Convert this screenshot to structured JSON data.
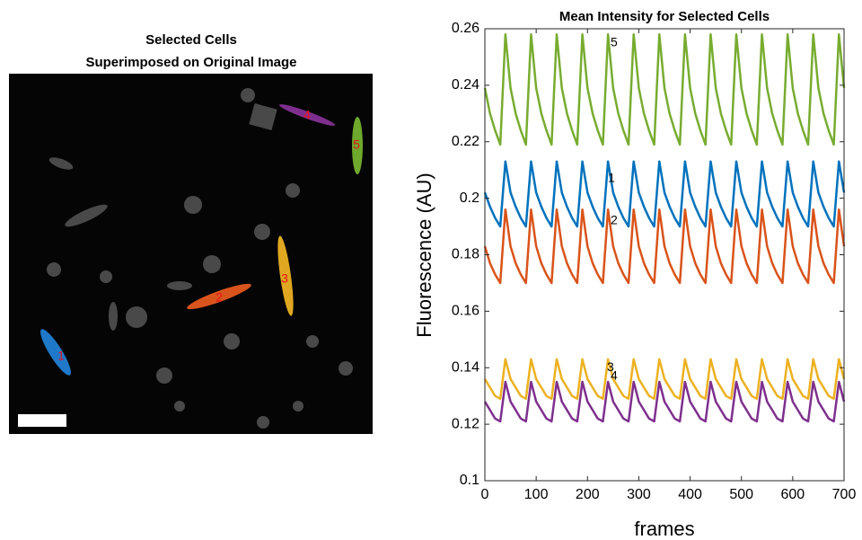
{
  "image_panel": {
    "title": [
      "Selected Cells",
      "Superimposed on Original Image"
    ],
    "cell_labels": [
      "1",
      "2",
      "3",
      "4",
      "5"
    ]
  },
  "chart_data": {
    "type": "line",
    "title": "Mean Intensity for Selected Cells",
    "x_label": "frames",
    "y_label": "Fluorescence (AU)",
    "xlim": [
      0,
      700
    ],
    "xticks": [
      0,
      100,
      200,
      300,
      400,
      500,
      600,
      700
    ],
    "ylim": [
      0.1,
      0.26
    ],
    "yticks": [
      0.1,
      0.12,
      0.14,
      0.16,
      0.18,
      0.2,
      0.22,
      0.24,
      0.26
    ],
    "x": [
      0,
      10,
      20,
      30,
      40,
      50,
      60,
      70,
      80,
      90,
      100,
      110,
      120,
      130,
      140,
      150,
      160,
      170,
      180,
      190,
      200,
      210,
      220,
      230,
      240,
      250,
      260,
      270,
      280,
      290,
      300,
      310,
      320,
      330,
      340,
      350,
      360,
      370,
      380,
      390,
      400,
      410,
      420,
      430,
      440,
      450,
      460,
      470,
      480,
      490,
      500,
      510,
      520,
      530,
      540,
      550,
      560,
      570,
      580,
      590,
      600,
      610,
      620,
      630,
      640,
      650,
      660,
      670,
      680,
      690,
      700
    ],
    "series": [
      {
        "name": "1",
        "color": "#0072bd",
        "values": [
          0.202,
          0.197,
          0.193,
          0.19,
          0.213,
          0.202,
          0.197,
          0.193,
          0.19,
          0.213,
          0.202,
          0.197,
          0.193,
          0.19,
          0.213,
          0.202,
          0.197,
          0.193,
          0.19,
          0.213,
          0.202,
          0.197,
          0.193,
          0.19,
          0.213,
          0.202,
          0.197,
          0.193,
          0.19,
          0.213,
          0.202,
          0.197,
          0.193,
          0.19,
          0.213,
          0.202,
          0.197,
          0.193,
          0.19,
          0.213,
          0.202,
          0.197,
          0.193,
          0.19,
          0.213,
          0.202,
          0.197,
          0.193,
          0.19,
          0.213,
          0.202,
          0.197,
          0.193,
          0.19,
          0.213,
          0.202,
          0.197,
          0.193,
          0.19,
          0.213,
          0.202,
          0.197,
          0.193,
          0.19,
          0.213,
          0.202,
          0.197,
          0.193,
          0.19,
          0.213,
          0.202
        ]
      },
      {
        "name": "2",
        "color": "#d95319",
        "values": [
          0.183,
          0.177,
          0.173,
          0.17,
          0.196,
          0.183,
          0.177,
          0.173,
          0.17,
          0.196,
          0.183,
          0.177,
          0.173,
          0.17,
          0.196,
          0.183,
          0.177,
          0.173,
          0.17,
          0.196,
          0.183,
          0.177,
          0.173,
          0.17,
          0.196,
          0.183,
          0.177,
          0.173,
          0.17,
          0.196,
          0.183,
          0.177,
          0.173,
          0.17,
          0.196,
          0.183,
          0.177,
          0.173,
          0.17,
          0.196,
          0.183,
          0.177,
          0.173,
          0.17,
          0.196,
          0.183,
          0.177,
          0.173,
          0.17,
          0.196,
          0.183,
          0.177,
          0.173,
          0.17,
          0.196,
          0.183,
          0.177,
          0.173,
          0.17,
          0.196,
          0.183,
          0.177,
          0.173,
          0.17,
          0.196,
          0.183,
          0.177,
          0.173,
          0.17,
          0.196,
          0.183
        ]
      },
      {
        "name": "3",
        "color": "#edb120",
        "values": [
          0.136,
          0.133,
          0.13,
          0.129,
          0.143,
          0.136,
          0.133,
          0.13,
          0.129,
          0.143,
          0.136,
          0.133,
          0.13,
          0.129,
          0.143,
          0.136,
          0.133,
          0.13,
          0.129,
          0.143,
          0.136,
          0.133,
          0.13,
          0.129,
          0.143,
          0.136,
          0.133,
          0.13,
          0.129,
          0.143,
          0.136,
          0.133,
          0.13,
          0.129,
          0.143,
          0.136,
          0.133,
          0.13,
          0.129,
          0.143,
          0.136,
          0.133,
          0.13,
          0.129,
          0.143,
          0.136,
          0.133,
          0.13,
          0.129,
          0.143,
          0.136,
          0.133,
          0.13,
          0.129,
          0.143,
          0.136,
          0.133,
          0.13,
          0.129,
          0.143,
          0.136,
          0.133,
          0.13,
          0.129,
          0.143,
          0.136,
          0.133,
          0.13,
          0.129,
          0.143,
          0.136
        ]
      },
      {
        "name": "4",
        "color": "#7e2f8e",
        "values": [
          0.128,
          0.125,
          0.122,
          0.121,
          0.135,
          0.128,
          0.125,
          0.122,
          0.121,
          0.135,
          0.128,
          0.125,
          0.122,
          0.121,
          0.135,
          0.128,
          0.125,
          0.122,
          0.121,
          0.135,
          0.128,
          0.125,
          0.122,
          0.121,
          0.135,
          0.128,
          0.125,
          0.122,
          0.121,
          0.135,
          0.128,
          0.125,
          0.122,
          0.121,
          0.135,
          0.128,
          0.125,
          0.122,
          0.121,
          0.135,
          0.128,
          0.125,
          0.122,
          0.121,
          0.135,
          0.128,
          0.125,
          0.122,
          0.121,
          0.135,
          0.128,
          0.125,
          0.122,
          0.121,
          0.135,
          0.128,
          0.125,
          0.122,
          0.121,
          0.135,
          0.128,
          0.125,
          0.122,
          0.121,
          0.135,
          0.128,
          0.125,
          0.122,
          0.121,
          0.135,
          0.128
        ]
      },
      {
        "name": "5",
        "color": "#77ac30",
        "values": [
          0.239,
          0.23,
          0.224,
          0.219,
          0.258,
          0.239,
          0.23,
          0.224,
          0.219,
          0.258,
          0.239,
          0.23,
          0.224,
          0.219,
          0.258,
          0.239,
          0.23,
          0.224,
          0.219,
          0.258,
          0.239,
          0.23,
          0.224,
          0.219,
          0.258,
          0.239,
          0.23,
          0.224,
          0.219,
          0.258,
          0.239,
          0.23,
          0.224,
          0.219,
          0.258,
          0.239,
          0.23,
          0.224,
          0.219,
          0.258,
          0.239,
          0.23,
          0.224,
          0.219,
          0.258,
          0.239,
          0.23,
          0.224,
          0.219,
          0.258,
          0.239,
          0.23,
          0.224,
          0.219,
          0.258,
          0.239,
          0.23,
          0.224,
          0.219,
          0.258,
          0.239,
          0.23,
          0.224,
          0.219,
          0.258,
          0.239,
          0.23,
          0.224,
          0.219,
          0.258,
          0.239
        ]
      }
    ],
    "annotations": [
      {
        "text": "5",
        "x": 245,
        "y": 0.255
      },
      {
        "text": "1",
        "x": 240,
        "y": 0.207
      },
      {
        "text": "2",
        "x": 245,
        "y": 0.192
      },
      {
        "text": "3",
        "x": 238,
        "y": 0.14
      },
      {
        "text": "4",
        "x": 245,
        "y": 0.137
      }
    ]
  }
}
